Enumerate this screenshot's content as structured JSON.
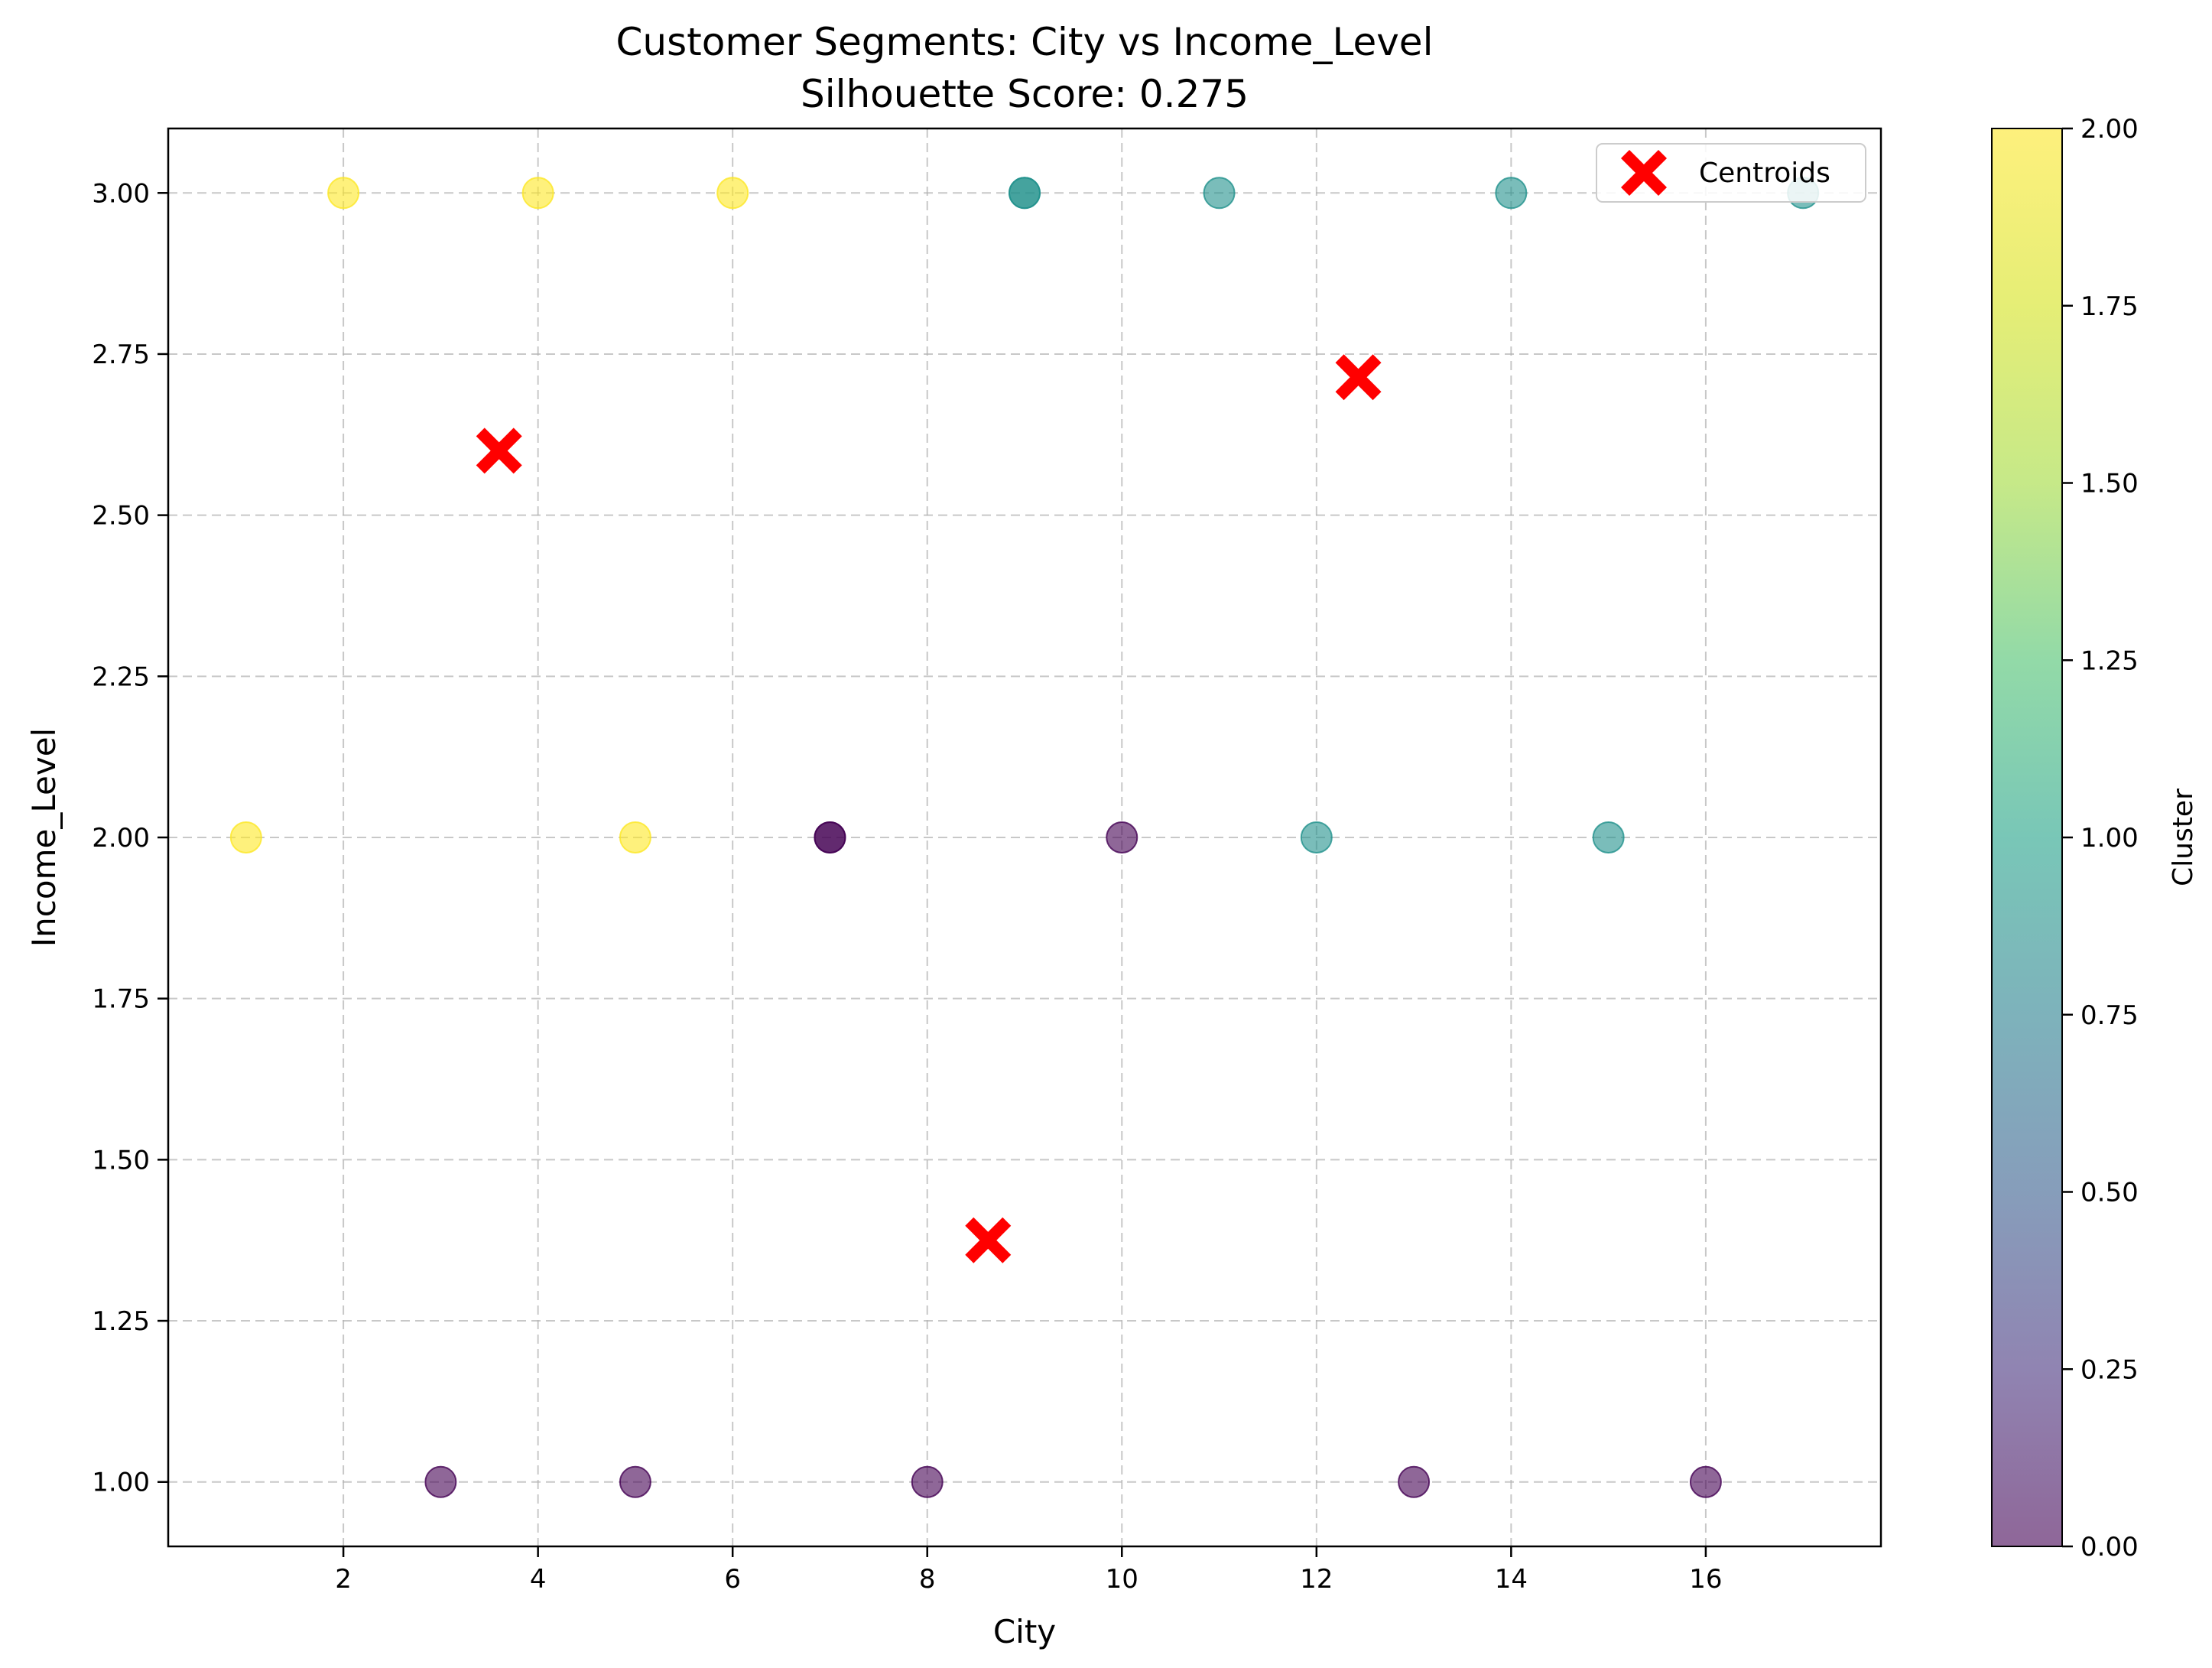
{
  "chart_data": {
    "type": "scatter",
    "title_line1": "Customer Segments: City vs Income_Level",
    "title_line2": "Silhouette Score: 0.275",
    "xlabel": "City",
    "ylabel": "Income_Level",
    "xlim": [
      0.2,
      17.8
    ],
    "ylim": [
      0.9,
      3.1
    ],
    "x_ticks": [
      2,
      4,
      6,
      8,
      10,
      12,
      14,
      16
    ],
    "x_tick_labels": [
      "2",
      "4",
      "6",
      "8",
      "10",
      "12",
      "14",
      "16"
    ],
    "y_ticks": [
      1.0,
      1.25,
      1.5,
      1.75,
      2.0,
      2.25,
      2.5,
      2.75,
      3.0
    ],
    "y_tick_labels": [
      "1.00",
      "1.25",
      "1.50",
      "1.75",
      "2.00",
      "2.25",
      "2.50",
      "2.75",
      "3.00"
    ],
    "grid": true,
    "colormap": "viridis",
    "colorbar": {
      "label": "Cluster",
      "range": [
        0,
        2
      ],
      "ticks": [
        0,
        0.25,
        0.5,
        0.75,
        1.0,
        1.25,
        1.5,
        1.75,
        2.0
      ],
      "tick_labels": [
        "0.00",
        "0.25",
        "0.50",
        "0.75",
        "1.00",
        "1.25",
        "1.50",
        "1.75",
        "2.00"
      ]
    },
    "cluster_colors": {
      "0": "#440154",
      "1": "#21918c",
      "2": "#fde725"
    },
    "point_alpha": 0.6,
    "points": [
      {
        "x": 2,
        "y": 3,
        "cluster": 2
      },
      {
        "x": 4,
        "y": 3,
        "cluster": 2
      },
      {
        "x": 6,
        "y": 3,
        "cluster": 2
      },
      {
        "x": 9,
        "y": 3,
        "cluster": 1
      },
      {
        "x": 9,
        "y": 3,
        "cluster": 1
      },
      {
        "x": 11,
        "y": 3,
        "cluster": 1
      },
      {
        "x": 14,
        "y": 3,
        "cluster": 1
      },
      {
        "x": 17,
        "y": 3,
        "cluster": 1
      },
      {
        "x": 1,
        "y": 2,
        "cluster": 2
      },
      {
        "x": 5,
        "y": 2,
        "cluster": 2
      },
      {
        "x": 7,
        "y": 2,
        "cluster": 0
      },
      {
        "x": 7,
        "y": 2,
        "cluster": 0
      },
      {
        "x": 10,
        "y": 2,
        "cluster": 0
      },
      {
        "x": 12,
        "y": 2,
        "cluster": 1
      },
      {
        "x": 15,
        "y": 2,
        "cluster": 1
      },
      {
        "x": 3,
        "y": 1,
        "cluster": 0
      },
      {
        "x": 5,
        "y": 1,
        "cluster": 0
      },
      {
        "x": 8,
        "y": 1,
        "cluster": 0
      },
      {
        "x": 13,
        "y": 1,
        "cluster": 0
      },
      {
        "x": 16,
        "y": 1,
        "cluster": 0
      }
    ],
    "centroids": {
      "legend_label": "Centroids",
      "legend_position": "upper right",
      "color": "#ff0000",
      "points": [
        {
          "x": 3.6,
          "y": 2.6
        },
        {
          "x": 12.43,
          "y": 2.714
        },
        {
          "x": 8.625,
          "y": 1.375
        }
      ]
    }
  }
}
